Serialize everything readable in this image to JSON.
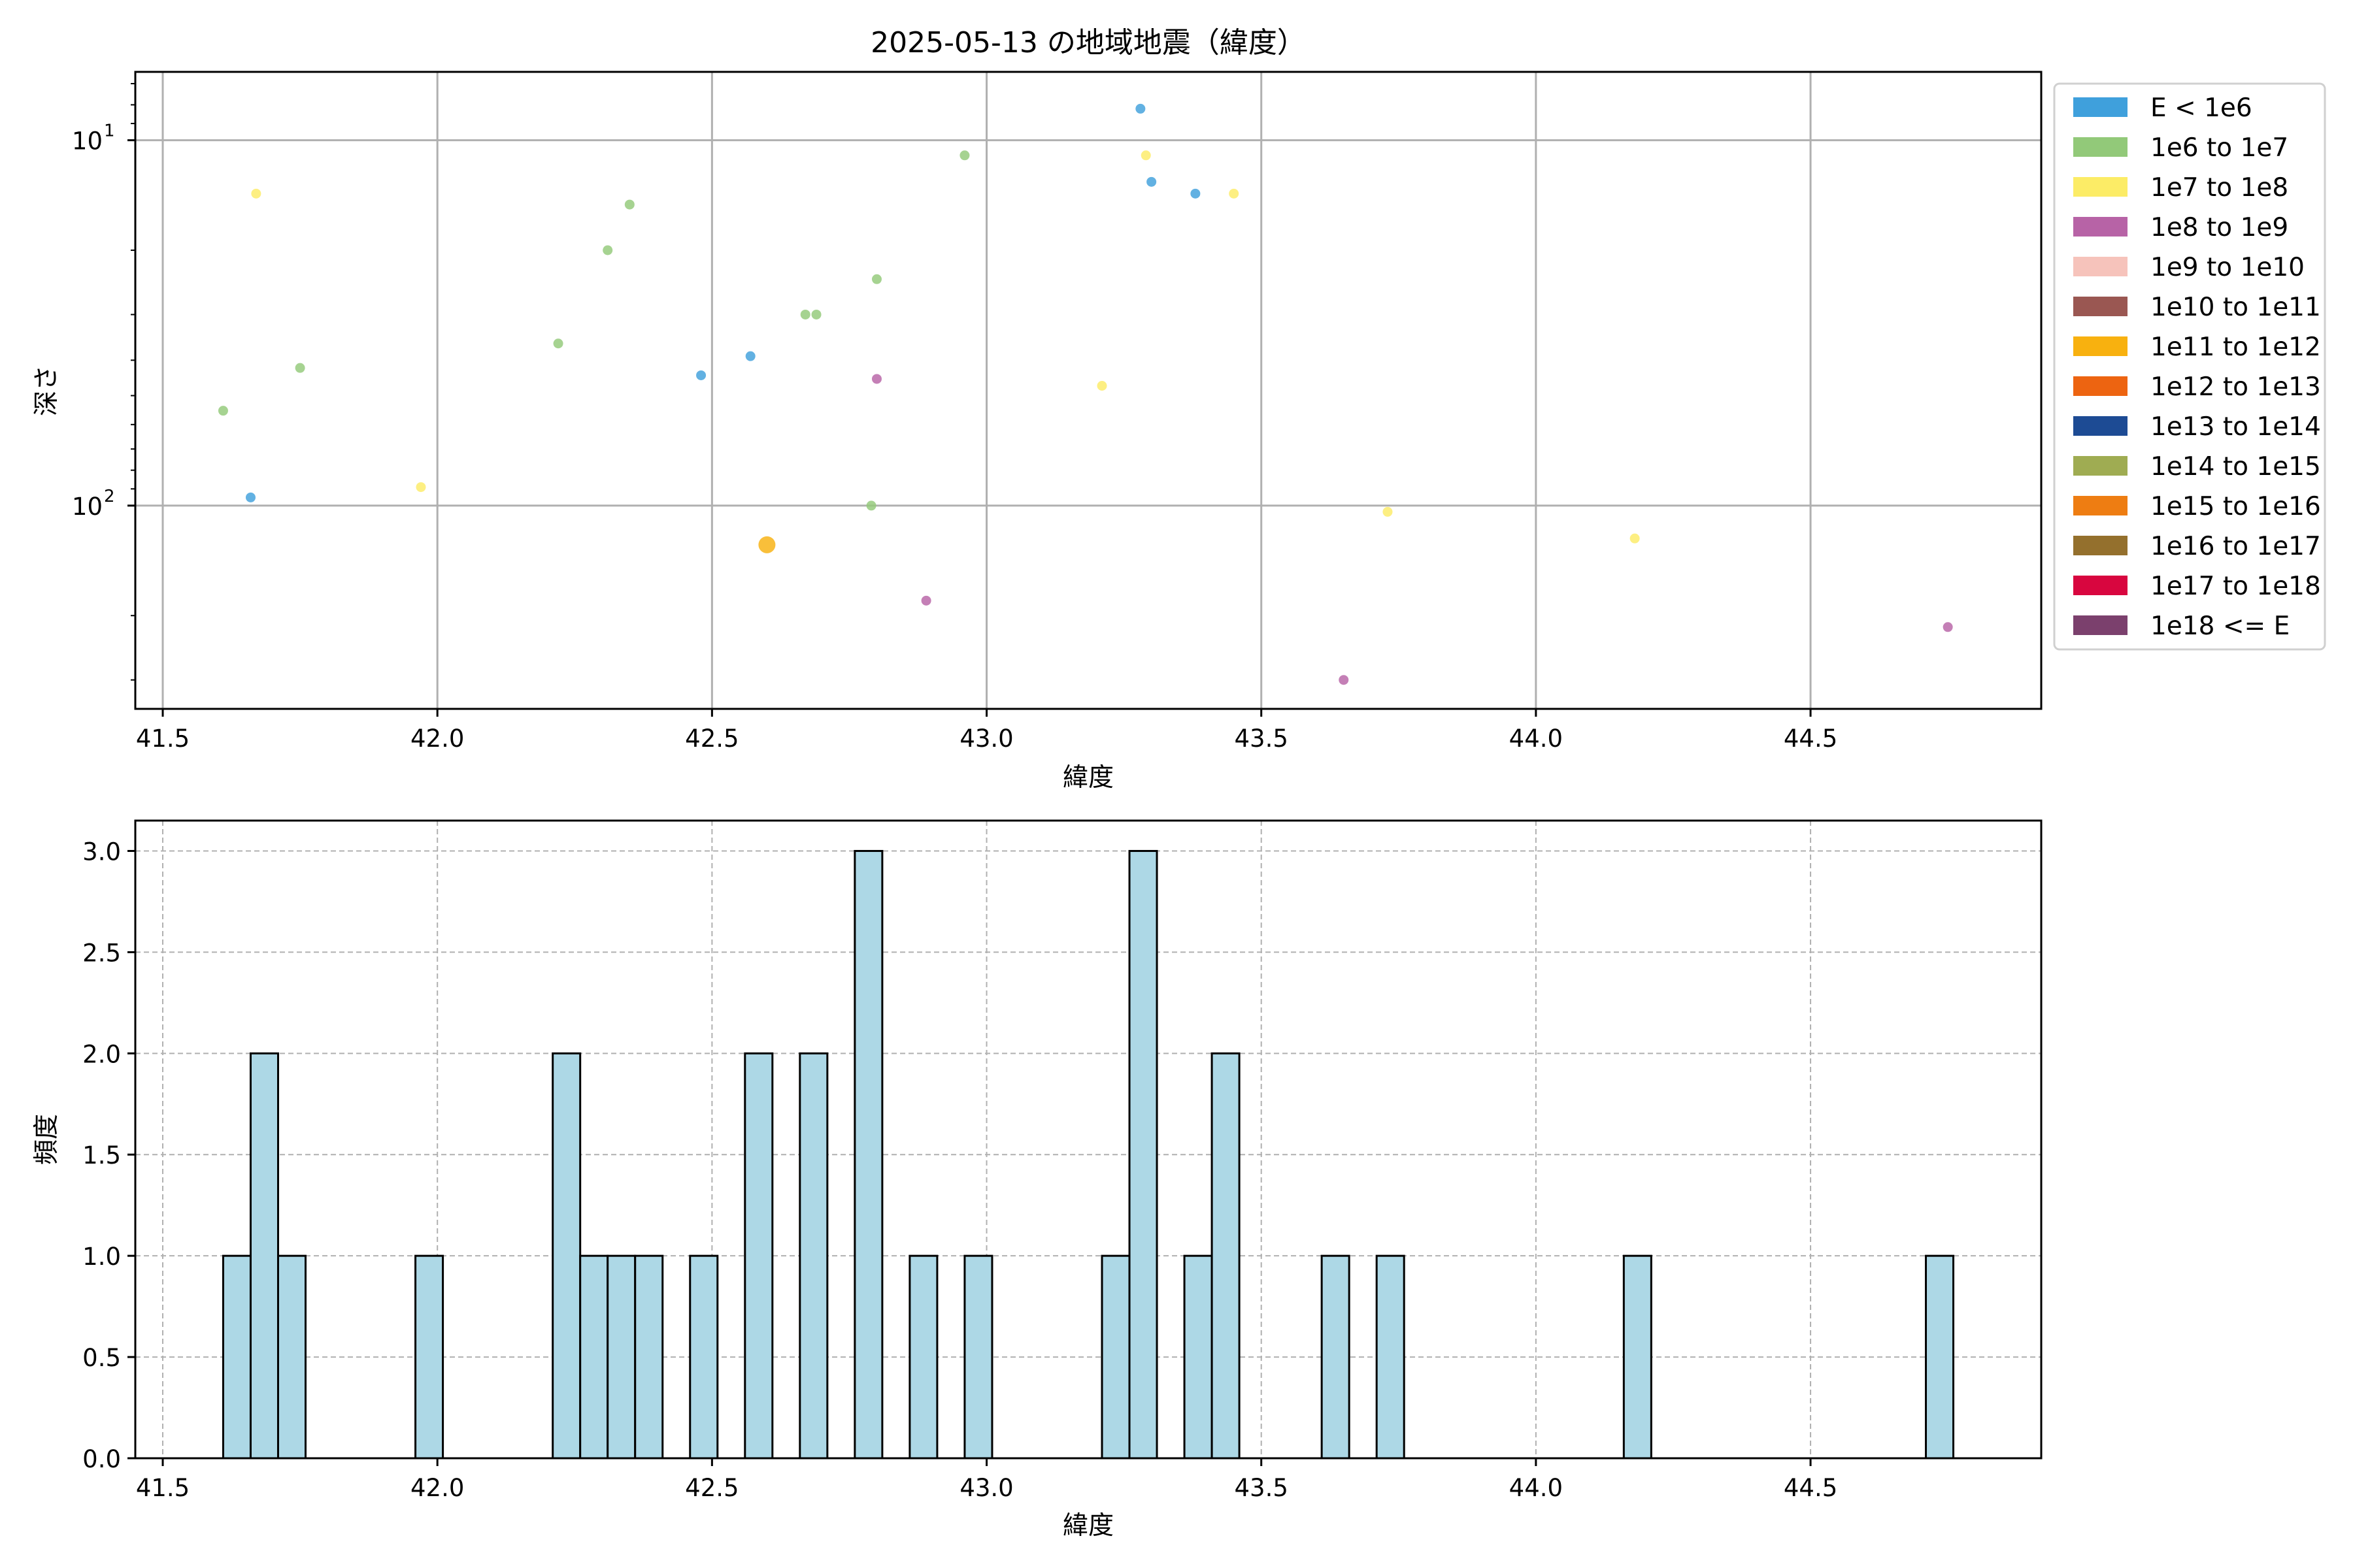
{
  "chart_data": [
    {
      "type": "scatter",
      "title": "2025-05-13 の地域地震（緯度）",
      "xlabel": "緯度",
      "ylabel": "深さ",
      "y_scale": "log",
      "y_inverted": true,
      "xlim": [
        41.45,
        44.92
      ],
      "ylim": [
        360,
        6.5
      ],
      "x_ticks": [
        "41.5",
        "42.0",
        "42.5",
        "43.0",
        "43.5",
        "44.0",
        "44.5"
      ],
      "y_ticks": [
        {
          "value": 10,
          "base": "10",
          "exp": "1"
        },
        {
          "value": 100,
          "base": "10",
          "exp": "2"
        }
      ],
      "grid": true,
      "legend_position": "outside right",
      "legend": [
        {
          "label": "E < 1e6",
          "color": "#3fa0dc"
        },
        {
          "label": "1e6 to 1e7",
          "color": "#92c979"
        },
        {
          "label": "1e7 to 1e8",
          "color": "#fcec66"
        },
        {
          "label": "1e8 to 1e9",
          "color": "#b763a6"
        },
        {
          "label": "1e9 to 1e10",
          "color": "#f6c3bb"
        },
        {
          "label": "1e10 to 1e11",
          "color": "#9a5752"
        },
        {
          "label": "1e11 to 1e12",
          "color": "#f8b10f"
        },
        {
          "label": "1e12 to 1e13",
          "color": "#ed6411"
        },
        {
          "label": "1e13 to 1e14",
          "color": "#1d4b94"
        },
        {
          "label": "1e14 to 1e15",
          "color": "#9fac52"
        },
        {
          "label": "1e15 to 1e16",
          "color": "#ee7d12"
        },
        {
          "label": "1e16 to 1e17",
          "color": "#94702d"
        },
        {
          "label": "1e17 to 1e18",
          "color": "#d8063f"
        },
        {
          "label": "1e18 <= E",
          "color": "#7b406d"
        }
      ],
      "points": [
        {
          "x": 41.61,
          "y": 55,
          "c": 1
        },
        {
          "x": 41.66,
          "y": 95,
          "c": 0
        },
        {
          "x": 41.67,
          "y": 14,
          "c": 2
        },
        {
          "x": 41.75,
          "y": 42,
          "c": 1
        },
        {
          "x": 41.97,
          "y": 89,
          "c": 2
        },
        {
          "x": 42.22,
          "y": 36,
          "c": 1
        },
        {
          "x": 42.31,
          "y": 20,
          "c": 1
        },
        {
          "x": 42.35,
          "y": 15,
          "c": 1
        },
        {
          "x": 42.48,
          "y": 44,
          "c": 0
        },
        {
          "x": 42.57,
          "y": 39,
          "c": 0
        },
        {
          "x": 42.6,
          "y": 128,
          "c": 6,
          "big": true
        },
        {
          "x": 42.67,
          "y": 30,
          "c": 1
        },
        {
          "x": 42.69,
          "y": 30,
          "c": 1
        },
        {
          "x": 42.79,
          "y": 100,
          "c": 1
        },
        {
          "x": 42.8,
          "y": 24,
          "c": 1
        },
        {
          "x": 42.8,
          "y": 45,
          "c": 3
        },
        {
          "x": 42.89,
          "y": 182,
          "c": 3
        },
        {
          "x": 42.96,
          "y": 11,
          "c": 1
        },
        {
          "x": 43.21,
          "y": 47,
          "c": 2
        },
        {
          "x": 43.28,
          "y": 8.2,
          "c": 0
        },
        {
          "x": 43.29,
          "y": 11,
          "c": 2
        },
        {
          "x": 43.3,
          "y": 13,
          "c": 0
        },
        {
          "x": 43.38,
          "y": 14,
          "c": 0
        },
        {
          "x": 43.45,
          "y": 14,
          "c": 2
        },
        {
          "x": 43.65,
          "y": 300,
          "c": 3
        },
        {
          "x": 43.73,
          "y": 104,
          "c": 2
        },
        {
          "x": 44.18,
          "y": 123,
          "c": 2
        },
        {
          "x": 44.75,
          "y": 215,
          "c": 3
        }
      ]
    },
    {
      "type": "bar",
      "xlabel": "緯度",
      "ylabel": "頻度",
      "xlim": [
        41.45,
        44.92
      ],
      "ylim": [
        0,
        3.15
      ],
      "bar_color": "#add8e6",
      "bin_width": 0.05,
      "x_ticks": [
        "41.5",
        "42.0",
        "42.5",
        "43.0",
        "43.5",
        "44.0",
        "44.5"
      ],
      "y_ticks": [
        "0.0",
        "0.5",
        "1.0",
        "1.5",
        "2.0",
        "2.5",
        "3.0"
      ],
      "grid": true,
      "bins": [
        {
          "start": 41.61,
          "count": 1
        },
        {
          "start": 41.66,
          "count": 2
        },
        {
          "start": 41.71,
          "count": 1
        },
        {
          "start": 41.96,
          "count": 1
        },
        {
          "start": 42.21,
          "count": 2
        },
        {
          "start": 42.26,
          "count": 1
        },
        {
          "start": 42.31,
          "count": 1
        },
        {
          "start": 42.36,
          "count": 1
        },
        {
          "start": 42.46,
          "count": 1
        },
        {
          "start": 42.56,
          "count": 2
        },
        {
          "start": 42.66,
          "count": 2
        },
        {
          "start": 42.76,
          "count": 3
        },
        {
          "start": 42.86,
          "count": 1
        },
        {
          "start": 42.96,
          "count": 1
        },
        {
          "start": 43.21,
          "count": 1
        },
        {
          "start": 43.26,
          "count": 3
        },
        {
          "start": 43.36,
          "count": 1
        },
        {
          "start": 43.41,
          "count": 2
        },
        {
          "start": 43.61,
          "count": 1
        },
        {
          "start": 43.71,
          "count": 1
        },
        {
          "start": 44.16,
          "count": 1
        },
        {
          "start": 44.71,
          "count": 1
        }
      ]
    }
  ]
}
